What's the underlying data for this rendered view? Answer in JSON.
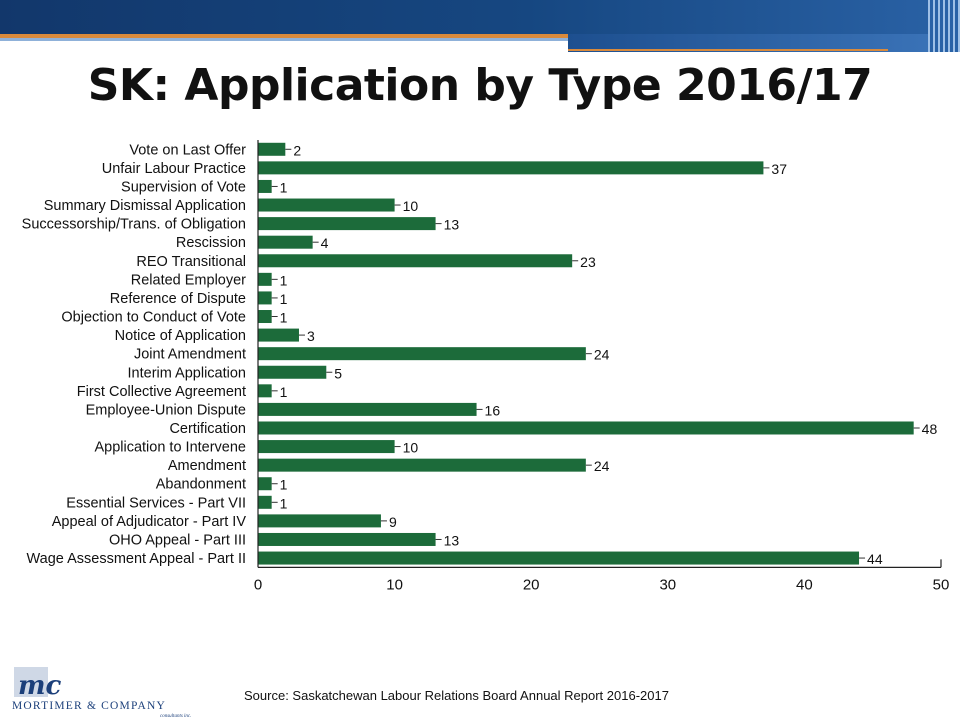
{
  "title": "SK: Application by Type 2016/17",
  "source": "Source: Saskatchewan Labour Relations Board Annual Report 2016-2017",
  "logo": {
    "monogram": "mc",
    "company": "Mortimer & Company",
    "tagline": "consultants inc."
  },
  "colors": {
    "bar": "#1c6b3a",
    "band": "#164781",
    "accent": "#d98a3c"
  },
  "chart_data": {
    "type": "bar",
    "orientation": "horizontal",
    "categories": [
      "Vote on Last Offer",
      "Unfair Labour Practice",
      "Supervision of Vote",
      "Summary Dismissal Application",
      "Successorship/Trans. of Obligation",
      "Rescission",
      "REO Transitional",
      "Related Employer",
      "Reference of Dispute",
      "Objection to Conduct of Vote",
      "Notice of Application",
      "Joint Amendment",
      "Interim Application",
      "First Collective Agreement",
      "Employee-Union Dispute",
      "Certification",
      "Application to Intervene",
      "Amendment",
      "Abandonment",
      "Essential Services - Part VII",
      "Appeal of Adjudicator - Part IV",
      "OHO Appeal - Part III",
      "Wage Assessment Appeal - Part II"
    ],
    "values": [
      2,
      37,
      1,
      10,
      13,
      4,
      23,
      1,
      1,
      1,
      3,
      24,
      5,
      1,
      16,
      48,
      10,
      24,
      1,
      1,
      9,
      13,
      44
    ],
    "xlim": [
      0,
      50
    ],
    "xticks": [
      0,
      10,
      20,
      30,
      40,
      50
    ],
    "data_labels": true,
    "grid": false,
    "legend": "none"
  }
}
